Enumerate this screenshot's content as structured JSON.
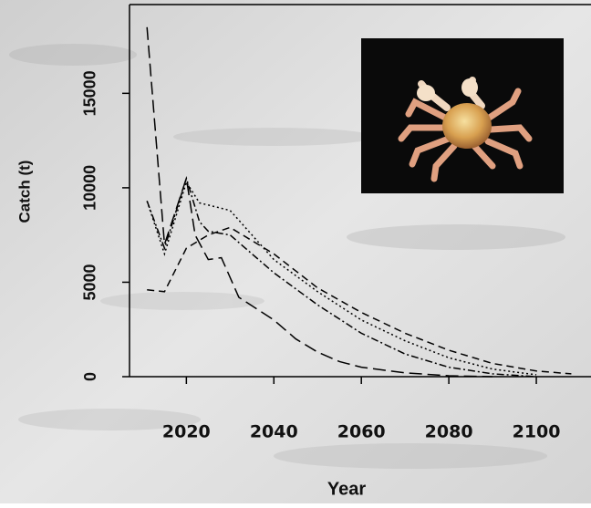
{
  "chart_data": {
    "type": "line",
    "x_label": "Year",
    "y_label": "Catch (t)",
    "xlim": [
      2007,
      2112.5
    ],
    "ylim": [
      0,
      19700
    ],
    "xticks": [
      2020,
      2040,
      2060,
      2080,
      2100
    ],
    "yticks": [
      0,
      5000,
      10000,
      15000
    ],
    "series": [
      {
        "color": "#000000",
        "dash": "14 6",
        "x": [
          2011,
          2015,
          2020,
          2022,
          2025,
          2028,
          2032,
          2040,
          2045,
          2050,
          2055,
          2060,
          2070,
          2080,
          2090
        ],
        "values": [
          18500,
          7000,
          10500,
          7500,
          6200,
          6300,
          4200,
          3000,
          2000,
          1300,
          800,
          500,
          200,
          50,
          0
        ]
      },
      {
        "color": "#000000",
        "dash": "8 3 2 3",
        "x": [
          2011,
          2015,
          2020,
          2023,
          2025,
          2030,
          2040,
          2050,
          2060,
          2070,
          2080,
          2090,
          2100
        ],
        "values": [
          9300,
          6800,
          10500,
          8200,
          7700,
          7500,
          5500,
          3800,
          2300,
          1200,
          500,
          150,
          0
        ]
      },
      {
        "color": "#000000",
        "dash": "2 3",
        "x": [
          2011,
          2015,
          2020,
          2023,
          2030,
          2035,
          2040,
          2050,
          2060,
          2070,
          2080,
          2090,
          2100
        ],
        "values": [
          9300,
          6500,
          10300,
          9200,
          8800,
          7500,
          6200,
          4500,
          3000,
          1900,
          1000,
          400,
          100
        ]
      },
      {
        "color": "#000000",
        "dash": "8 5",
        "x": [
          2011,
          2015,
          2020,
          2025,
          2030,
          2035,
          2040,
          2050,
          2060,
          2070,
          2080,
          2090,
          2100,
          2108
        ],
        "values": [
          4600,
          4500,
          6800,
          7500,
          7900,
          7200,
          6500,
          4700,
          3400,
          2300,
          1400,
          700,
          300,
          150
        ]
      }
    ]
  }
}
